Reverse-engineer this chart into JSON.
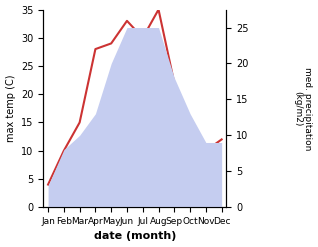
{
  "months": [
    "Jan",
    "Feb",
    "Mar",
    "Apr",
    "May",
    "Jun",
    "Jul",
    "Aug",
    "Sep",
    "Oct",
    "Nov",
    "Dec"
  ],
  "temperature": [
    4,
    10,
    15,
    28,
    29,
    33,
    30,
    35,
    22,
    13,
    10,
    12
  ],
  "precipitation": [
    3,
    8,
    10,
    13,
    20,
    25,
    25,
    25,
    18,
    13,
    9,
    9
  ],
  "temp_color": "#cc3333",
  "precip_color": "#c5cdf0",
  "ylabel_left": "max temp (C)",
  "ylabel_right": "med. precipitation (kg/m2)",
  "xlabel": "date (month)",
  "ylim_left": [
    0,
    35
  ],
  "ylim_right": [
    0,
    27.5
  ],
  "yticks_left": [
    0,
    5,
    10,
    15,
    20,
    25,
    30,
    35
  ],
  "yticks_right": [
    0,
    5,
    10,
    15,
    20,
    25
  ],
  "background_color": "#ffffff",
  "fig_width": 3.18,
  "fig_height": 2.47,
  "dpi": 100
}
